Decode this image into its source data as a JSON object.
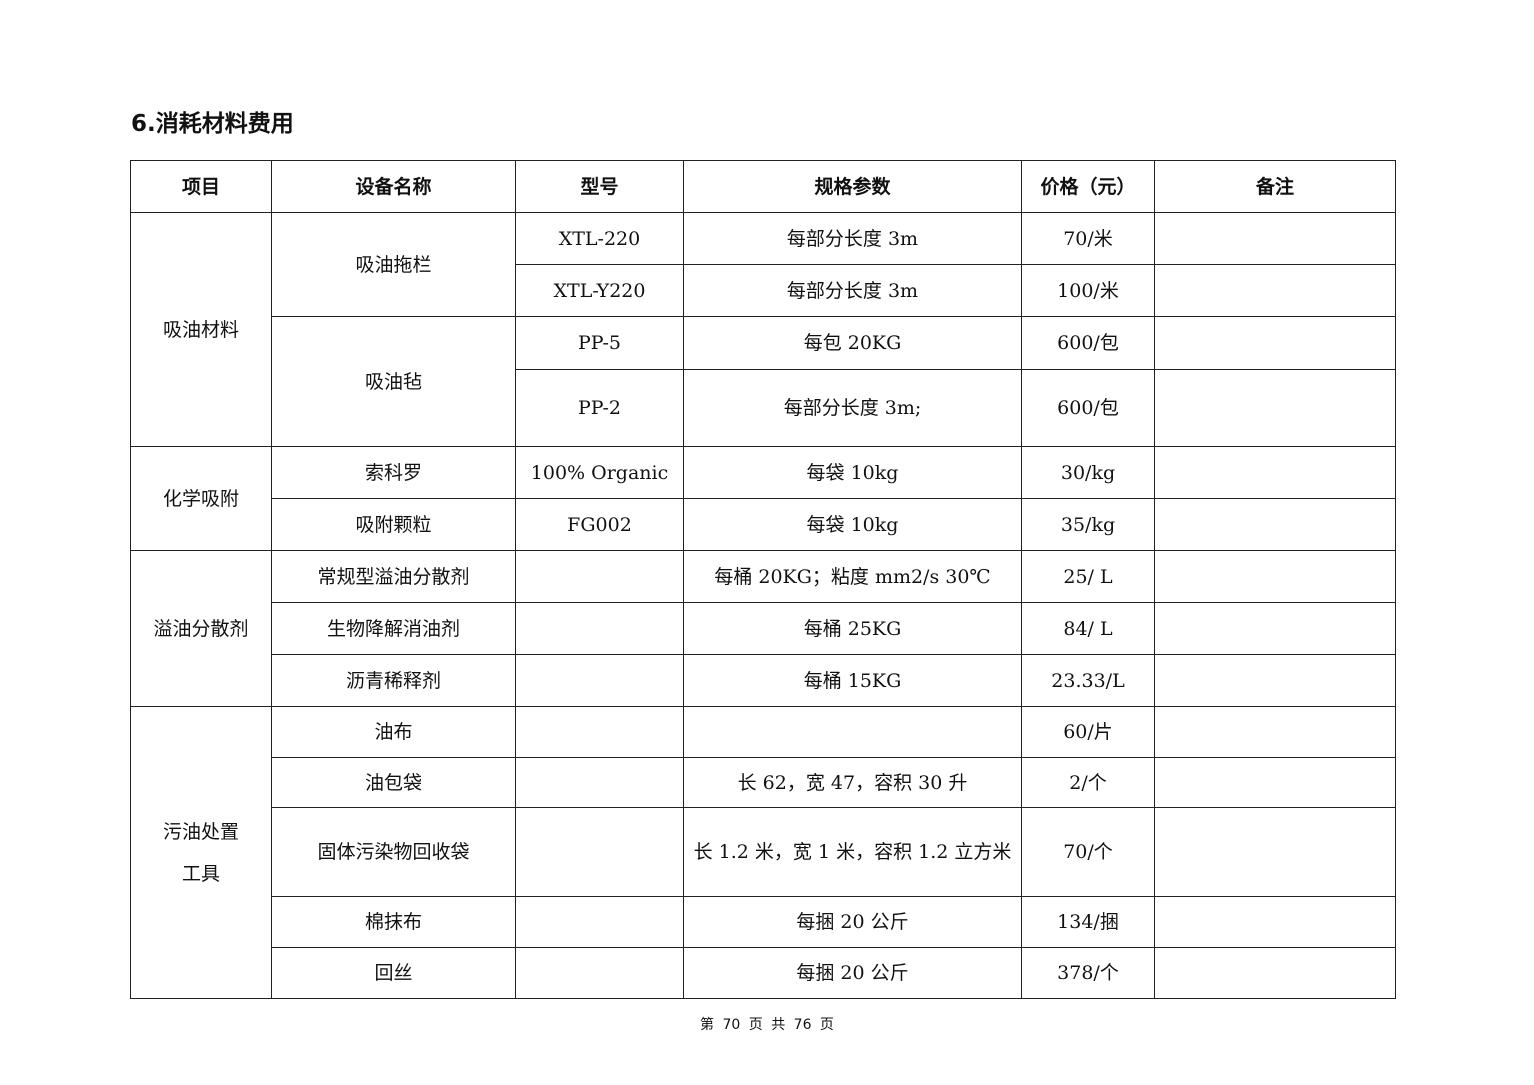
{
  "heading": "6.消耗材料费用",
  "table": {
    "headers": [
      "项目",
      "设备名称",
      "型号",
      "规格参数",
      "价格（元）",
      "备注"
    ],
    "groups": [
      {
        "category": "吸油材料",
        "items": [
          {
            "name": "吸油拖栏",
            "rows": [
              {
                "model": "XTL-220",
                "spec": "每部分长度 3m",
                "price": "70/米",
                "note": ""
              },
              {
                "model": "XTL-Y220",
                "spec": "每部分长度 3m",
                "price": "100/米",
                "note": ""
              }
            ]
          },
          {
            "name": "吸油毡",
            "rows": [
              {
                "model": "PP-5",
                "spec": "每包 20KG",
                "price": "600/包",
                "note": ""
              },
              {
                "model": "PP-2",
                "spec": "每部分长度 3m;",
                "price": "600/包",
                "note": ""
              }
            ]
          }
        ]
      },
      {
        "category": "化学吸附",
        "items": [
          {
            "name": "索科罗",
            "model": "100% Organic",
            "spec": "每袋 10kg",
            "price": "30/kg",
            "note": ""
          },
          {
            "name": "吸附颗粒",
            "model": "FG002",
            "spec": "每袋 10kg",
            "price": "35/kg",
            "note": ""
          }
        ]
      },
      {
        "category": "溢油分散剂",
        "items": [
          {
            "name": "常规型溢油分散剂",
            "model": "",
            "spec": "每桶 20KG；粘度 mm2/s 30℃",
            "price": "25/ L",
            "note": ""
          },
          {
            "name": "生物降解消油剂",
            "model": "",
            "spec": "每桶 25KG",
            "price": "84/ L",
            "note": ""
          },
          {
            "name": "沥青稀释剂",
            "model": "",
            "spec": "每桶 15KG",
            "price": "23.33/L",
            "note": ""
          }
        ]
      },
      {
        "category_line1": "污油处置",
        "category_line2": "工具",
        "items": [
          {
            "name": "油布",
            "model": "",
            "spec": "",
            "price": "60/片",
            "note": ""
          },
          {
            "name": "油包袋",
            "model": "",
            "spec": "长 62，宽 47，容积 30 升",
            "price": "2/个",
            "note": ""
          },
          {
            "name": "固体污染物回收袋",
            "model": "",
            "spec": "长 1.2 米，宽 1 米，容积 1.2 立方米",
            "price": "70/个",
            "note": ""
          },
          {
            "name": "棉抹布",
            "model": "",
            "spec": "每捆 20 公斤",
            "price": "134/捆",
            "note": ""
          },
          {
            "name": "回丝",
            "model": "",
            "spec": "每捆 20 公斤",
            "price": "378/个",
            "note": ""
          }
        ]
      }
    ]
  },
  "footer": "第 70 页 共 76 页"
}
